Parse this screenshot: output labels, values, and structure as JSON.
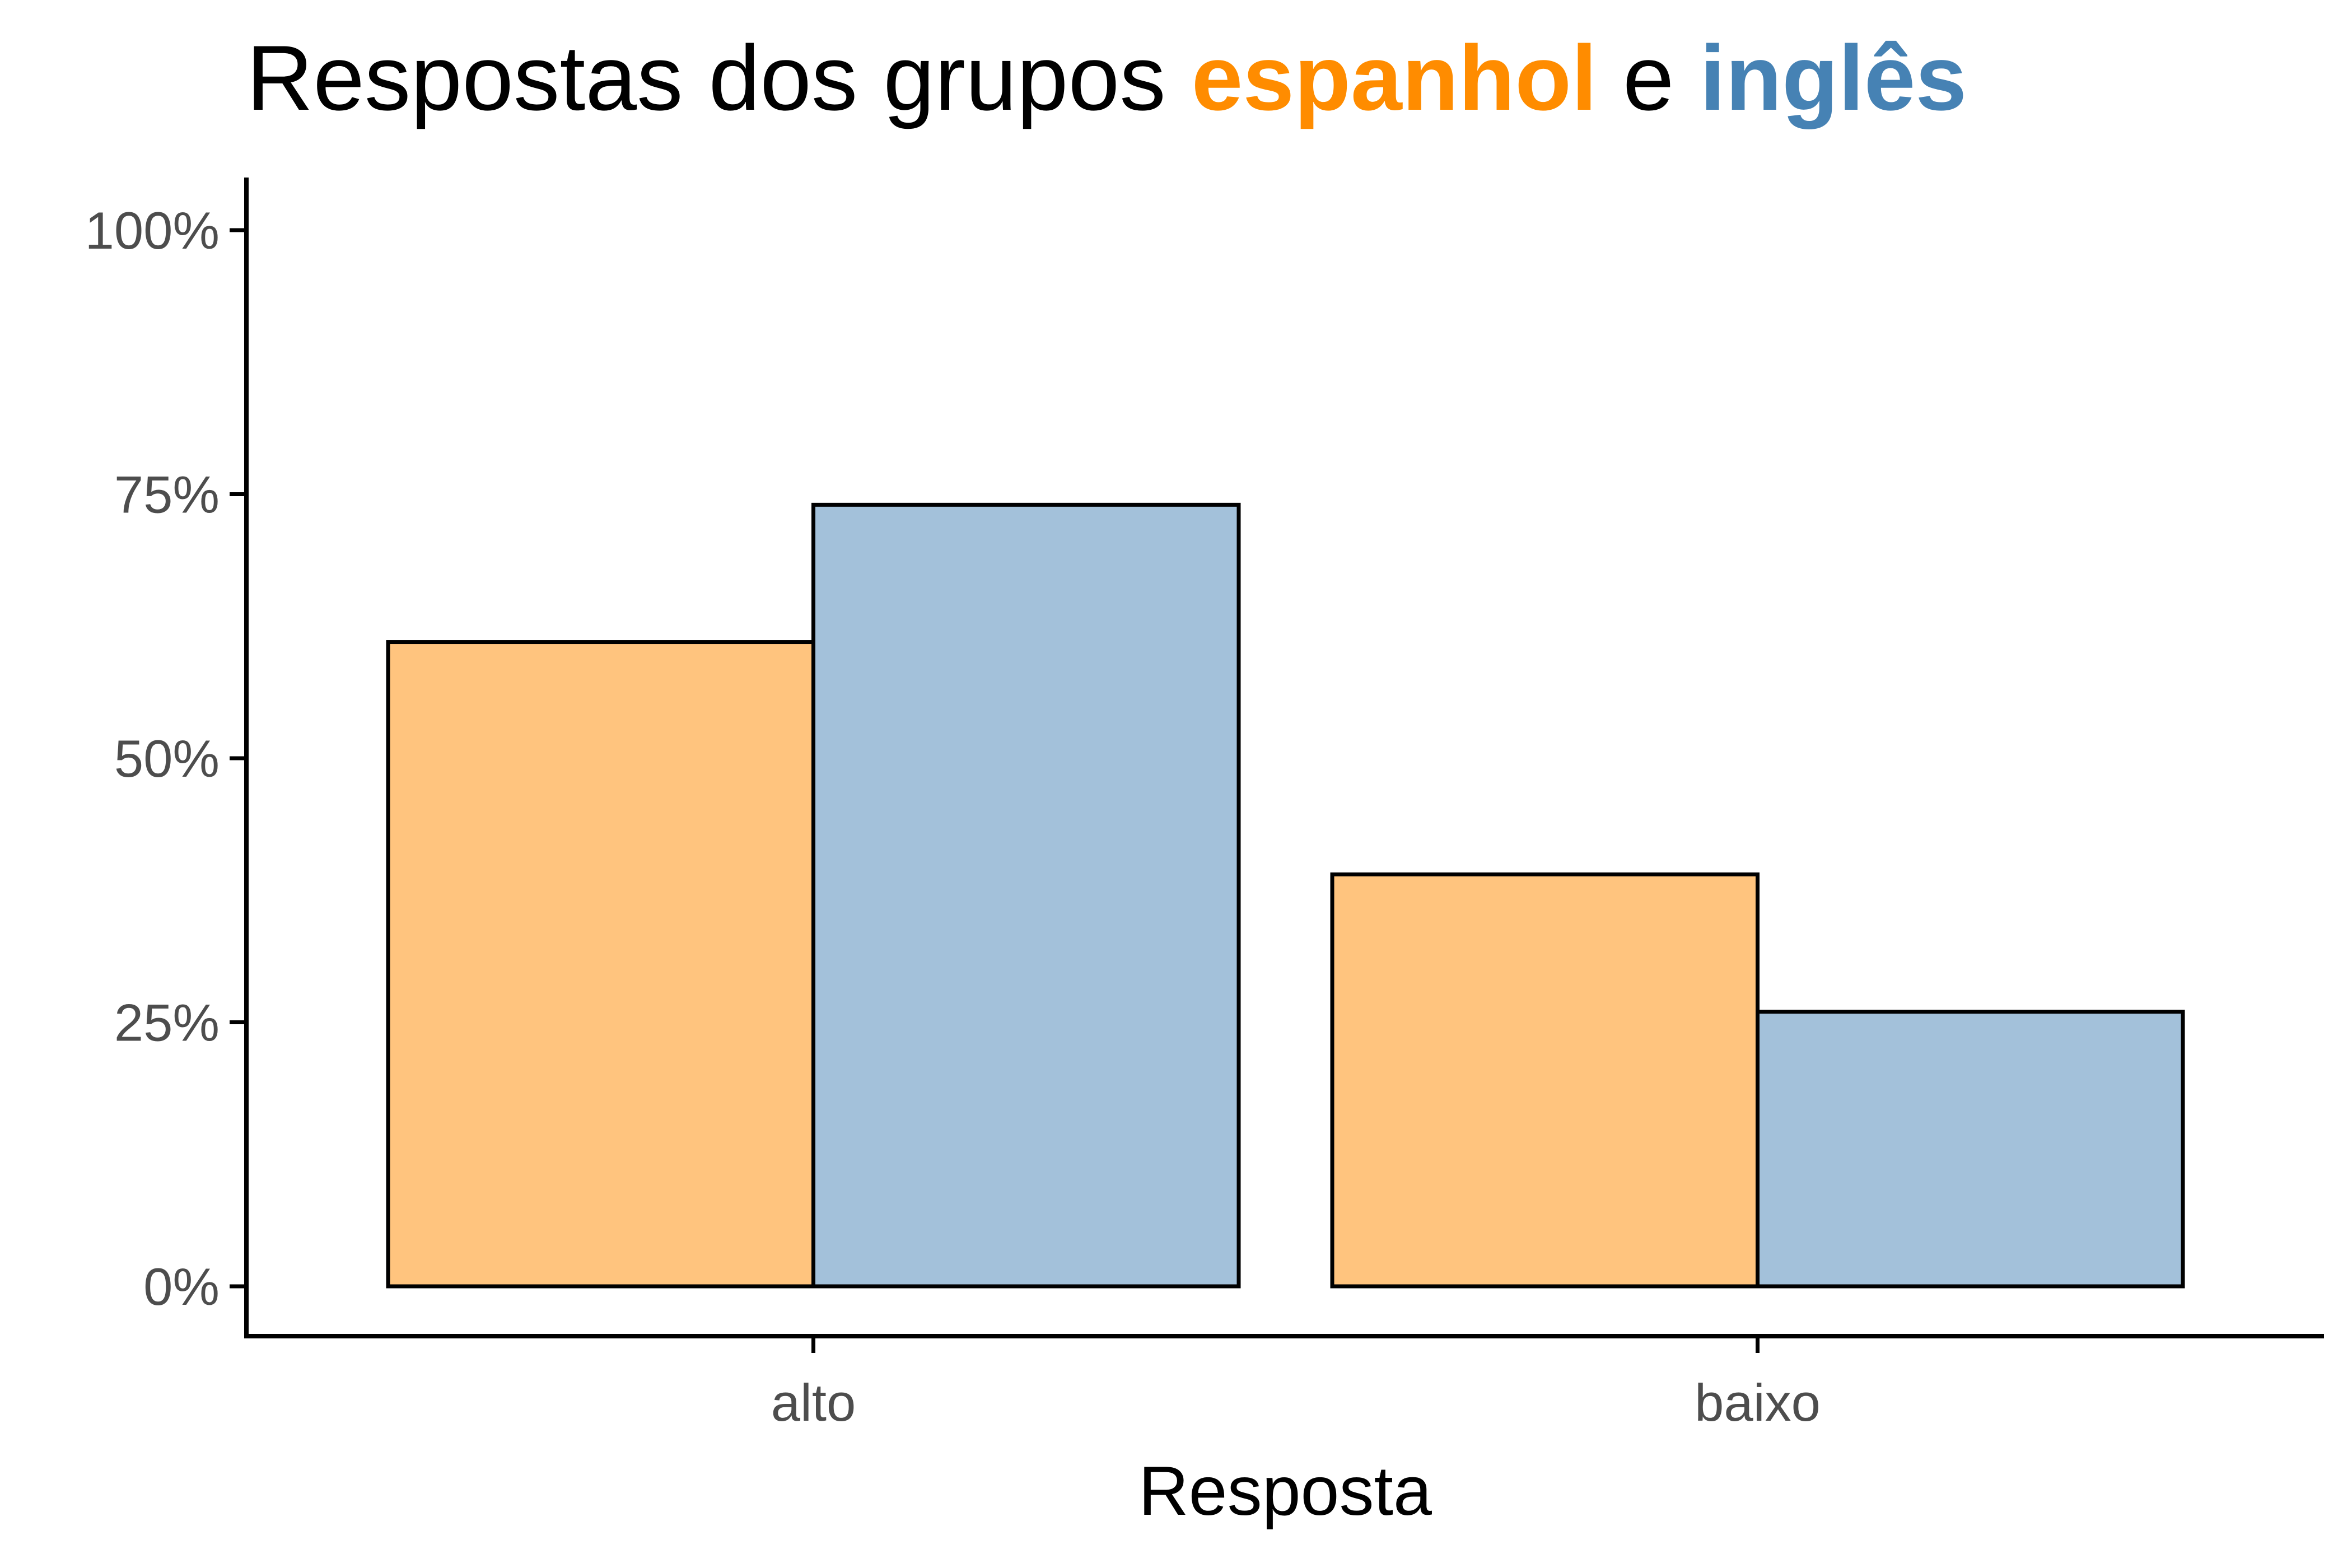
{
  "chart_data": {
    "type": "bar",
    "title": {
      "prefix": "Respostas dos grupos ",
      "group1": "espanhol",
      "joiner": " e ",
      "group2": "inglês"
    },
    "xlabel": "Resposta",
    "ylabel": "",
    "categories": [
      "alto",
      "baixo"
    ],
    "series": [
      {
        "key": "espanhol",
        "values": [
          0.61,
          0.39
        ],
        "fill": "#FFC47E",
        "title_color": "#FF8C00"
      },
      {
        "key": "inglês",
        "values": [
          0.74,
          0.26
        ],
        "fill": "#A3C1DA",
        "title_color": "#4682B4"
      }
    ],
    "ylim": [
      0,
      1
    ],
    "yticks": [
      0,
      0.25,
      0.5,
      0.75,
      1
    ],
    "ytick_labels": [
      "0%",
      "25%",
      "50%",
      "75%",
      "100%"
    ],
    "grid": false,
    "legend": "none",
    "bar_outline": "#000000"
  }
}
